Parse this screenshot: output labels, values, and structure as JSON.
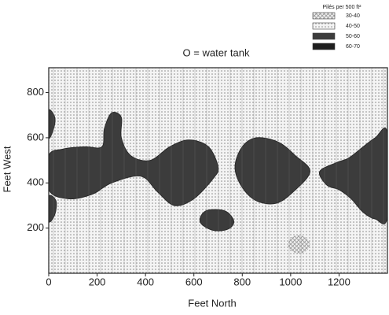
{
  "chart_data": {
    "type": "region-map",
    "annotation": "O = water tank",
    "x_label": "Feet North",
    "y_label": "Feet West",
    "legend_title": "Pilés per 500 ft²",
    "xlim": [
      0,
      1400
    ],
    "ylim": [
      0,
      910
    ],
    "xticks": [
      0,
      200,
      400,
      600,
      800,
      1000,
      1200
    ],
    "yticks": [
      200,
      400,
      600,
      800
    ],
    "series": [
      {
        "name": "30-40",
        "color": "#9a9a9a",
        "pattern": "crosshatch",
        "regions": [
          {
            "x": [
              990,
              1020,
              1060,
              1080,
              1050,
              1005
            ],
            "y": [
              120,
              90,
              95,
              130,
              165,
              160
            ]
          }
        ]
      },
      {
        "name": "40-50",
        "color": "#8a8a8a",
        "pattern": "dots",
        "regions": [
          {
            "x": [
              0,
              1400,
              1400,
              0
            ],
            "y": [
              0,
              0,
              910,
              910
            ]
          }
        ]
      },
      {
        "name": "50-60",
        "color": "#3c3c3c",
        "pattern": "solid",
        "regions": [
          {
            "x": [
              0,
              80,
              180,
              260,
              380,
              450,
              520,
              600,
              680,
              700,
              660,
              580,
              500,
              420,
              340,
              300,
              300,
              260,
              230,
              220,
              150,
              60,
              0
            ],
            "y": [
              370,
              330,
              350,
              400,
              430,
              360,
              300,
              330,
              420,
              470,
              560,
              590,
              560,
              500,
              520,
              600,
              690,
              710,
              640,
              560,
              560,
              550,
              520
            ]
          },
          {
            "x": [
              770,
              800,
              860,
              940,
              1010,
              1080,
              1020,
              950,
              860,
              800
            ],
            "y": [
              470,
              380,
              320,
              310,
              360,
              450,
              520,
              580,
              600,
              560
            ]
          },
          {
            "x": [
              1120,
              1150,
              1200,
              1250,
              1300,
              1350,
              1400,
              1400,
              1350,
              1300,
              1240,
              1190
            ],
            "y": [
              450,
              390,
              370,
              330,
              270,
              240,
              250,
              620,
              600,
              560,
              510,
              490
            ]
          },
          {
            "x": [
              0,
              20,
              25,
              0
            ],
            "y": [
              600,
              640,
              690,
              720
            ]
          },
          {
            "x": [
              0,
              25,
              30,
              0
            ],
            "y": [
              230,
              260,
              320,
              340
            ]
          },
          {
            "x": [
              630,
              680,
              740,
              765,
              730,
              660,
              630
            ],
            "y": [
              220,
              190,
              195,
              230,
              275,
              280,
              255
            ]
          }
        ]
      },
      {
        "name": "60-70",
        "color": "#1e1e1e",
        "pattern": "solid",
        "regions": []
      }
    ]
  }
}
